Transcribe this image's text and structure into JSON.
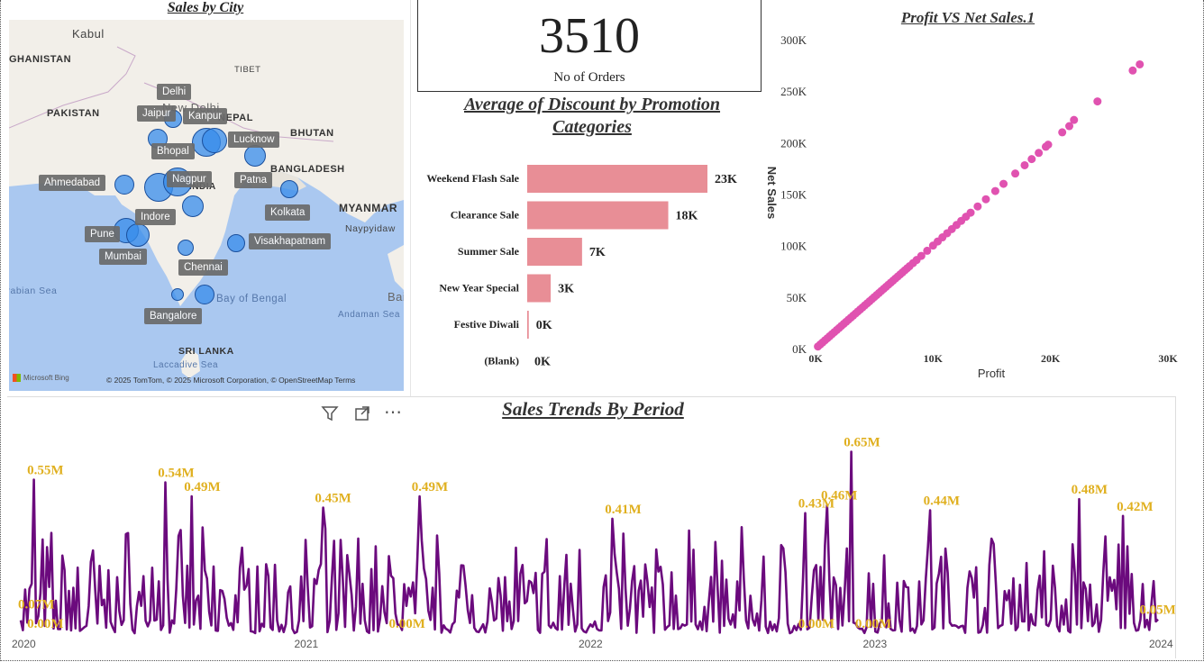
{
  "map": {
    "title": "Sales by City",
    "geo_labels": [
      "Kabul",
      "GHANISTAN",
      "PAKISTAN",
      "TIBET",
      "New Delhi",
      "NEPAL",
      "BHUTAN",
      "BANGLADESH",
      "MYANMAR",
      "Naypyidaw",
      "INDIA",
      "Arabian Sea",
      "Bay of Bengal",
      "Andaman Sea",
      "SRI LANKA",
      "Laccadive Sea",
      "Bai"
    ],
    "cities": [
      "Delhi",
      "Jaipur",
      "Kanpur",
      "Lucknow",
      "Bhopal",
      "Ahmedabad",
      "Nagpur",
      "Patna",
      "Kolkata",
      "Indore",
      "Pune",
      "Mumbai",
      "Visakhapatnam",
      "Chennai",
      "Bangalore"
    ],
    "attribution": "© 2025 TomTom, © 2025 Microsoft Corporation, © OpenStreetMap  Terms",
    "bing": "Microsoft Bing",
    "land_color": "#f2efe9",
    "water_color": "#aac8f0",
    "bubble_color": "#3b8fe8"
  },
  "kpi": {
    "value": "3510",
    "label": "No of Orders"
  },
  "chart_data": [
    {
      "type": "bar",
      "orientation": "horizontal",
      "title": "Average of Discount by Promotion Categories",
      "categories": [
        "Weekend Flash Sale",
        "Clearance Sale",
        "Summer Sale",
        "New Year Special",
        "Festive Diwali",
        "(Blank)"
      ],
      "values": [
        23000,
        18000,
        7000,
        3000,
        200,
        0
      ],
      "data_labels": [
        "23K",
        "18K",
        "7K",
        "3K",
        "0K",
        "0K"
      ],
      "color": "#e88e96",
      "grid": false
    },
    {
      "type": "scatter",
      "title": "Profit VS Net Sales.1",
      "xlabel": "Profit",
      "ylabel": "Net Sales",
      "xlim": [
        0,
        30000
      ],
      "ylim": [
        0,
        300000
      ],
      "x_ticks": [
        "0K",
        "10K",
        "20K",
        "30K"
      ],
      "y_ticks": [
        "0K",
        "50K",
        "100K",
        "150K",
        "200K",
        "250K",
        "300K"
      ],
      "color": "#e052b0",
      "x": [
        200,
        400,
        600,
        800,
        1000,
        1200,
        1400,
        1600,
        1800,
        2000,
        2200,
        2400,
        2600,
        2800,
        3000,
        3200,
        3400,
        3600,
        3800,
        4000,
        4200,
        4400,
        4600,
        4800,
        5000,
        5200,
        5400,
        5600,
        5800,
        6000,
        6200,
        6400,
        6600,
        6800,
        7000,
        7200,
        7400,
        7600,
        7800,
        8000,
        8300,
        8600,
        9000,
        9500,
        10000,
        10400,
        10800,
        11200,
        11600,
        12000,
        12400,
        12800,
        13200,
        13800,
        14500,
        15300,
        16000,
        17000,
        17800,
        18400,
        19000,
        19600,
        19800,
        21000,
        21600,
        22000,
        24000,
        27000,
        27600
      ],
      "y": [
        2000,
        4000,
        6000,
        8000,
        10000,
        12000,
        14000,
        16000,
        18000,
        20000,
        22000,
        24000,
        26000,
        28000,
        30000,
        32000,
        34000,
        36000,
        38000,
        40000,
        42000,
        44000,
        46000,
        48000,
        50000,
        52000,
        54000,
        56000,
        58000,
        60000,
        62000,
        64000,
        66000,
        68000,
        70000,
        72000,
        74000,
        76000,
        78000,
        80000,
        83000,
        86000,
        90000,
        95000,
        100000,
        104000,
        108000,
        112000,
        116000,
        120000,
        124000,
        128000,
        132000,
        138000,
        145000,
        153000,
        160000,
        170000,
        178000,
        184000,
        190000,
        196000,
        198000,
        210000,
        216000,
        222000,
        240000,
        270000,
        276000
      ]
    },
    {
      "type": "line",
      "title": "Sales Trends By Period",
      "x_ticks": [
        "2020",
        "2021",
        "2022",
        "2023",
        "2024"
      ],
      "color": "#6b0a7d",
      "label_color": "#e0b020",
      "ylim": [
        0,
        0.7
      ],
      "annotations": [
        {
          "label": "0.55M",
          "x": 0.012,
          "value": 0.55
        },
        {
          "label": "0.54M",
          "x": 0.127,
          "value": 0.54
        },
        {
          "label": "0.49M",
          "x": 0.15,
          "value": 0.49
        },
        {
          "label": "0.45M",
          "x": 0.265,
          "value": 0.45
        },
        {
          "label": "0.49M",
          "x": 0.35,
          "value": 0.49
        },
        {
          "label": "0.41M",
          "x": 0.52,
          "value": 0.41
        },
        {
          "label": "0.43M",
          "x": 0.69,
          "value": 0.43
        },
        {
          "label": "0.46M",
          "x": 0.71,
          "value": 0.46
        },
        {
          "label": "0.65M",
          "x": 0.73,
          "value": 0.65
        },
        {
          "label": "0.44M",
          "x": 0.8,
          "value": 0.44
        },
        {
          "label": "0.48M",
          "x": 0.93,
          "value": 0.48
        },
        {
          "label": "0.42M",
          "x": 0.97,
          "value": 0.42
        },
        {
          "label": "0.07M",
          "x": 0.004,
          "value": 0.07
        },
        {
          "label": "0.00M",
          "x": 0.012,
          "value": 0.0
        },
        {
          "label": "0.00M",
          "x": 0.33,
          "value": 0.0
        },
        {
          "label": "0.00M",
          "x": 0.69,
          "value": 0.0
        },
        {
          "label": "0.00M",
          "x": 0.74,
          "value": 0.0
        },
        {
          "label": "0.05M",
          "x": 0.99,
          "value": 0.05
        }
      ]
    }
  ]
}
